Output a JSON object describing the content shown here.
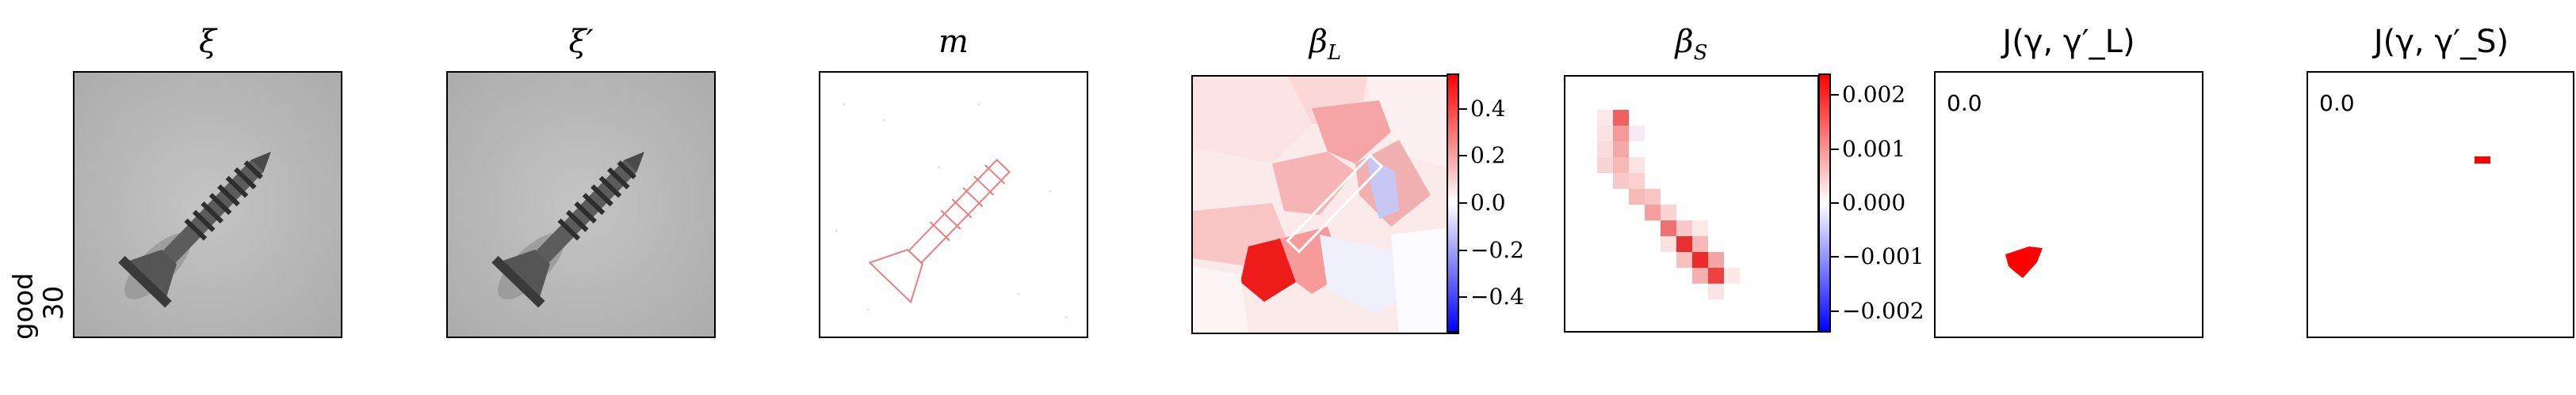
{
  "row_label": {
    "line1": "good",
    "line2": "30"
  },
  "panels": [
    {
      "title": "ξ"
    },
    {
      "title": "ξ′"
    },
    {
      "title": "m"
    },
    {
      "title": "β_L",
      "title_main": "β",
      "title_sub": "L"
    },
    {
      "title": "β_S",
      "title_main": "β",
      "title_sub": "S"
    },
    {
      "title": "J(γ, γ′_L)",
      "overlay": "0.0"
    },
    {
      "title": "J(γ, γ′_S)",
      "overlay": "0.0"
    }
  ],
  "colorbar_L": {
    "ticks": [
      "0.4",
      "0.2",
      "0.0",
      "−0.2",
      "−0.4"
    ],
    "range": [
      -0.55,
      0.55
    ]
  },
  "colorbar_S": {
    "ticks": [
      "0.002",
      "0.001",
      "0.000",
      "−0.001",
      "−0.002"
    ],
    "range": [
      -0.0024,
      0.0024
    ]
  },
  "colors": {
    "positive": "#ff0000",
    "negative": "#0000ff",
    "neutral": "#ffffff"
  }
}
